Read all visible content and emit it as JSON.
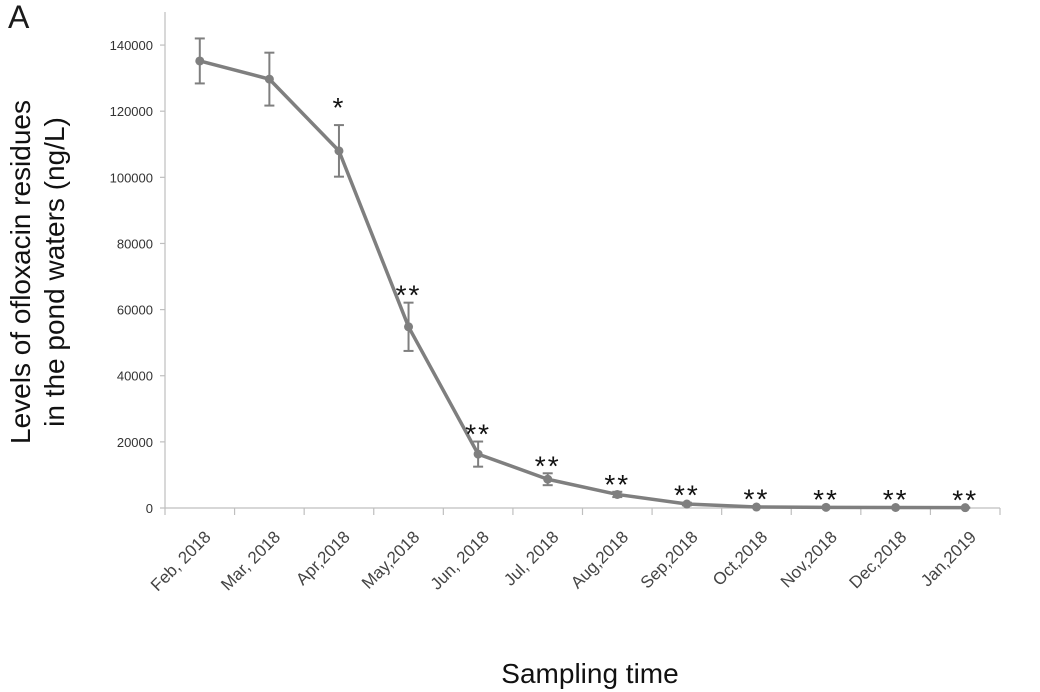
{
  "panel_label": "A",
  "chart_data": {
    "type": "line",
    "title": "",
    "xlabel": "Sampling time",
    "ylabel_lines": [
      "Levels of ofloxacin residues",
      "in the pond waters (ng/L)"
    ],
    "ylim": [
      0,
      150000
    ],
    "yticks": [
      0,
      20000,
      40000,
      60000,
      80000,
      100000,
      120000,
      140000
    ],
    "ytick_labels": [
      "0",
      "20000",
      "40000",
      "60000",
      "80000",
      "100000",
      "120000",
      "140000"
    ],
    "categories": [
      "Feb, 2018",
      "Mar, 2018",
      "Apr,2018",
      "May,2018",
      "Jun, 2018",
      "Jul, 2018",
      "Aug,2018",
      "Sep,2018",
      "Oct,2018",
      "Nov,2018",
      "Dec,2018",
      "Jan,2019"
    ],
    "series": [
      {
        "name": "Ofloxacin residues",
        "color": "#7f7f7f",
        "values": [
          135200,
          129700,
          108000,
          54800,
          16300,
          8700,
          4100,
          1200,
          300,
          200,
          150,
          100
        ],
        "errors": [
          6800,
          8000,
          7800,
          7300,
          3800,
          1800,
          800,
          400,
          150,
          100,
          80,
          60
        ]
      }
    ],
    "significance": [
      "",
      "",
      "*",
      "**",
      "**",
      "**",
      "**",
      "**",
      "**",
      "**",
      "**",
      "**"
    ],
    "grid": false
  }
}
